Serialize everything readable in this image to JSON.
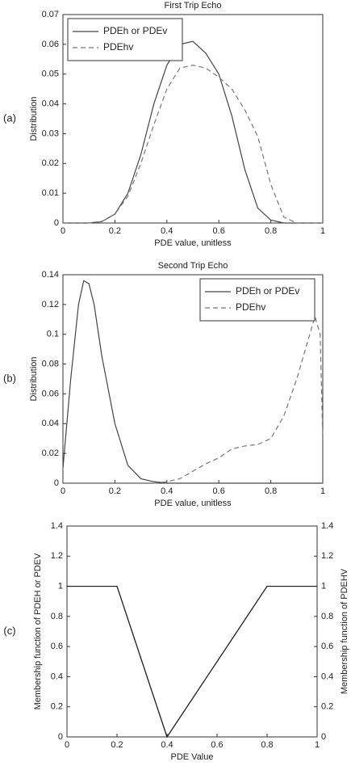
{
  "chart_data": [
    {
      "type": "line",
      "title": "First Trip Echo",
      "annotation": "(a)",
      "xlabel": "PDE value, unitless",
      "ylabel": "Distribution",
      "xlim": [
        0,
        1
      ],
      "xticks": [
        0,
        0.2,
        0.4,
        0.6,
        0.8,
        1
      ],
      "ylim": [
        0,
        0.07
      ],
      "yticks": [
        0,
        0.01,
        0.02,
        0.03,
        0.04,
        0.05,
        0.06,
        0.07
      ],
      "legend": "upper left",
      "series": [
        {
          "name": "PDEh or PDEv",
          "color": "#444444",
          "dash": false,
          "x": [
            0,
            0.1,
            0.15,
            0.2,
            0.25,
            0.3,
            0.35,
            0.4,
            0.45,
            0.5,
            0.55,
            0.6,
            0.65,
            0.7,
            0.75,
            0.8,
            0.85,
            1
          ],
          "values": [
            0,
            0,
            0.0005,
            0.003,
            0.01,
            0.023,
            0.04,
            0.053,
            0.06,
            0.061,
            0.057,
            0.05,
            0.036,
            0.018,
            0.005,
            0.001,
            0,
            0
          ]
        },
        {
          "name": "PDEhv",
          "color": "#777777",
          "dash": true,
          "x": [
            0,
            0.1,
            0.15,
            0.2,
            0.25,
            0.3,
            0.35,
            0.4,
            0.45,
            0.5,
            0.55,
            0.6,
            0.65,
            0.7,
            0.75,
            0.8,
            0.85,
            0.9,
            1
          ],
          "values": [
            0,
            0,
            0.0005,
            0.003,
            0.009,
            0.02,
            0.033,
            0.045,
            0.052,
            0.053,
            0.052,
            0.049,
            0.045,
            0.038,
            0.029,
            0.013,
            0.002,
            0,
            0
          ]
        }
      ]
    },
    {
      "type": "line",
      "title": "Second Trip Echo",
      "annotation": "(b)",
      "xlabel": "PDE value, unitless",
      "ylabel": "Distribution",
      "xlim": [
        0,
        1
      ],
      "xticks": [
        0,
        0.2,
        0.4,
        0.6,
        0.8,
        1
      ],
      "ylim": [
        0,
        0.14
      ],
      "yticks": [
        0,
        0.02,
        0.04,
        0.06,
        0.08,
        0.1,
        0.12,
        0.14
      ],
      "legend": "upper right",
      "series": [
        {
          "name": "PDEh or PDEv",
          "color": "#444444",
          "dash": false,
          "x": [
            0,
            0.03,
            0.06,
            0.08,
            0.1,
            0.12,
            0.15,
            0.2,
            0.25,
            0.3,
            0.35,
            0.4,
            1
          ],
          "values": [
            0.01,
            0.07,
            0.12,
            0.136,
            0.134,
            0.12,
            0.085,
            0.04,
            0.012,
            0.003,
            0.001,
            0,
            0
          ]
        },
        {
          "name": "PDEhv",
          "color": "#777777",
          "dash": true,
          "x": [
            0.35,
            0.4,
            0.45,
            0.5,
            0.55,
            0.6,
            0.65,
            0.7,
            0.75,
            0.8,
            0.85,
            0.9,
            0.95,
            0.97,
            0.99,
            1
          ],
          "values": [
            0,
            0.001,
            0.003,
            0.008,
            0.013,
            0.017,
            0.023,
            0.025,
            0.026,
            0.03,
            0.045,
            0.07,
            0.1,
            0.112,
            0.1,
            0.03
          ]
        }
      ]
    },
    {
      "type": "line",
      "annotation": "(c)",
      "xlabel": "PDE Value",
      "ylabel": "Membership function of PDEH or PDEV",
      "y2label": "Membership function of PDEHV",
      "xlim": [
        0,
        1
      ],
      "xticks": [
        0,
        0.2,
        0.4,
        0.6,
        0.8,
        1
      ],
      "ylim": [
        0,
        1.4
      ],
      "yticks": [
        0,
        0.2,
        0.4,
        0.6,
        0.8,
        1,
        1.2,
        1.4
      ],
      "y2lim": [
        0,
        1.4
      ],
      "y2ticks": [
        0,
        0.2,
        0.4,
        0.6,
        0.8,
        1,
        1.2,
        1.4
      ],
      "series": [
        {
          "color": "#555555",
          "dash": false,
          "x": [
            0,
            0.2,
            0.4,
            0.8,
            1
          ],
          "values": [
            1,
            1,
            0,
            1,
            1
          ]
        },
        {
          "color": "#222222",
          "dash": false,
          "axis": "y2",
          "x": [
            0,
            0.2,
            0.4,
            0.8,
            1
          ],
          "values": [
            1,
            1,
            0,
            1,
            1
          ]
        }
      ]
    }
  ]
}
